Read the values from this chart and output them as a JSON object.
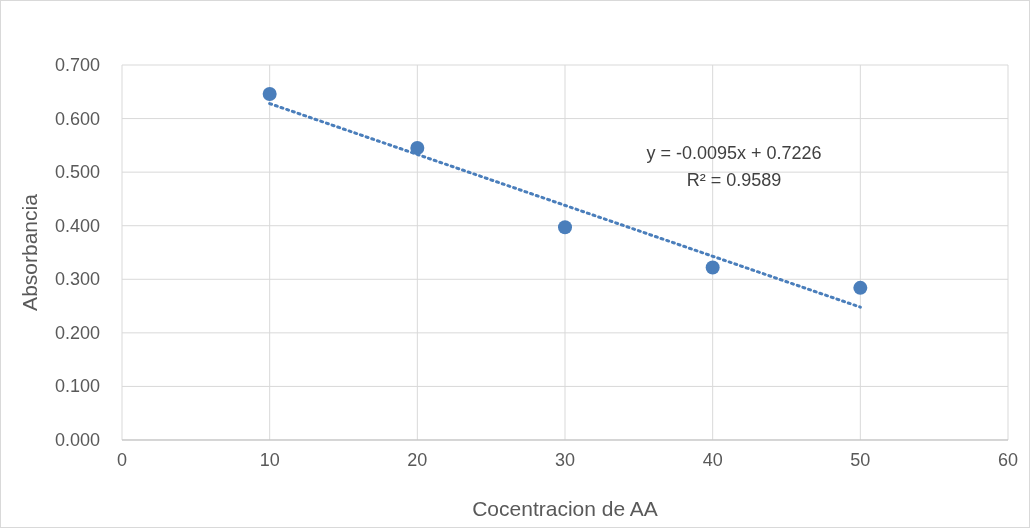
{
  "chart_data": {
    "type": "scatter",
    "xlabel": "Cocentracion de AA",
    "ylabel": "Absorbancia",
    "xlim": [
      0,
      60
    ],
    "xticks": [
      0,
      10,
      20,
      30,
      40,
      50,
      60
    ],
    "ylim": [
      0,
      0.7
    ],
    "yticks": [
      {
        "value": 0,
        "label": "0.000"
      },
      {
        "value": 0.1,
        "label": "0.100"
      },
      {
        "value": 0.2,
        "label": "0.200"
      },
      {
        "value": 0.3,
        "label": "0.300"
      },
      {
        "value": 0.4,
        "label": "0.400"
      },
      {
        "value": 0.5,
        "label": "0.500"
      },
      {
        "value": 0.6,
        "label": "0.600"
      },
      {
        "value": 0.7,
        "label": "0.700"
      }
    ],
    "grid": true,
    "marker": "circle",
    "series": [
      {
        "color": "#4a7ebb",
        "x": [
          10,
          20,
          30,
          40,
          50
        ],
        "values": [
          0.646,
          0.545,
          0.397,
          0.322,
          0.284
        ]
      },
      {
        "type": "line",
        "color": "#4a7ebb",
        "line_style": "dotted",
        "marker": "none",
        "x": [
          10,
          50
        ],
        "values": [
          0.628,
          0.248
        ]
      }
    ],
    "annotations": [
      "y = -0.0095x + 0.7226",
      "R² = 0.9589"
    ]
  }
}
